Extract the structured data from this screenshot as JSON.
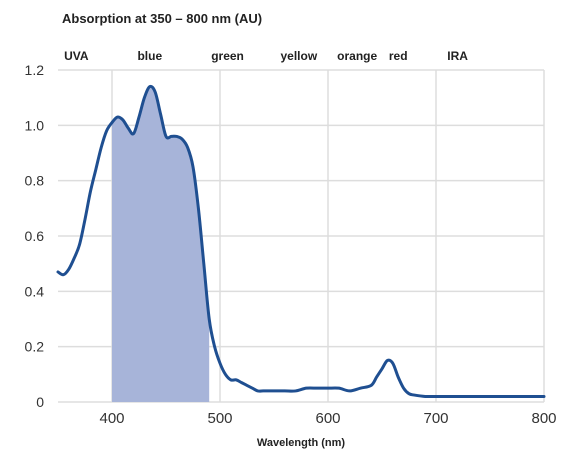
{
  "chart_data": {
    "type": "line",
    "title": "Absorption at 350 – 800 nm (AU)",
    "xlabel": "Wavelength (nm)",
    "ylabel": "",
    "xlim": [
      350,
      800
    ],
    "ylim": [
      0,
      1.2
    ],
    "x_ticks": [
      400,
      500,
      600,
      700,
      800
    ],
    "x_tick_labels": [
      "400",
      "500",
      "600",
      "700",
      "800"
    ],
    "y_ticks": [
      0,
      0.2,
      0.4,
      0.6,
      0.8,
      1.0,
      1.2
    ],
    "y_tick_labels": [
      "0",
      "0.2",
      "0.4",
      "0.6",
      "0.8",
      "1.0",
      "1.2"
    ],
    "grid": true,
    "band_labels": [
      {
        "text": "UVA",
        "x": 367
      },
      {
        "text": "blue",
        "x": 435
      },
      {
        "text": "green",
        "x": 507
      },
      {
        "text": "yellow",
        "x": 573
      },
      {
        "text": "orange",
        "x": 627
      },
      {
        "text": "red",
        "x": 665
      },
      {
        "text": "IRA",
        "x": 720
      }
    ],
    "highlight_range": [
      400,
      490
    ],
    "colors": {
      "line": "#1f4f91",
      "fill": "#a7b4d9",
      "grid": "#dddddd",
      "tick_text": "#333333",
      "title_text": "#222222"
    },
    "series": [
      {
        "x": [
          350,
          355,
          360,
          365,
          370,
          375,
          380,
          385,
          390,
          395,
          400,
          405,
          410,
          415,
          420,
          425,
          430,
          435,
          440,
          445,
          450,
          455,
          460,
          465,
          470,
          475,
          480,
          485,
          490,
          495,
          500,
          505,
          510,
          515,
          520,
          525,
          530,
          535,
          540,
          545,
          550,
          560,
          570,
          580,
          590,
          600,
          610,
          620,
          630,
          640,
          645,
          650,
          655,
          660,
          665,
          670,
          675,
          680,
          690,
          700,
          720,
          740,
          760,
          780,
          800
        ],
        "y": [
          0.47,
          0.46,
          0.48,
          0.52,
          0.57,
          0.66,
          0.76,
          0.84,
          0.92,
          0.98,
          1.01,
          1.03,
          1.02,
          0.99,
          0.97,
          1.03,
          1.1,
          1.14,
          1.12,
          1.04,
          0.96,
          0.96,
          0.96,
          0.95,
          0.92,
          0.85,
          0.7,
          0.5,
          0.3,
          0.2,
          0.14,
          0.1,
          0.08,
          0.08,
          0.07,
          0.06,
          0.05,
          0.04,
          0.04,
          0.04,
          0.04,
          0.04,
          0.04,
          0.05,
          0.05,
          0.05,
          0.05,
          0.04,
          0.05,
          0.06,
          0.09,
          0.12,
          0.15,
          0.14,
          0.09,
          0.05,
          0.03,
          0.025,
          0.02,
          0.02,
          0.02,
          0.02,
          0.02,
          0.02,
          0.02
        ]
      }
    ]
  }
}
